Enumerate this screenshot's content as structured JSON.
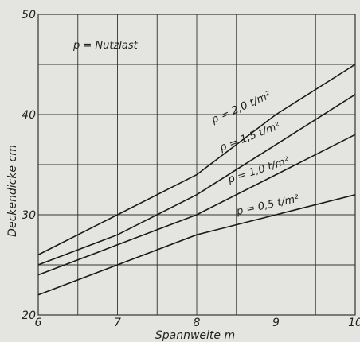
{
  "chart_data": {
    "type": "line",
    "title": "",
    "xlabel": "Spannweite m",
    "ylabel": "Deckendicke cm",
    "xlim": [
      6,
      10
    ],
    "ylim": [
      20,
      50
    ],
    "xticks": [
      6,
      7,
      8,
      9,
      10
    ],
    "yticks": [
      20,
      30,
      40,
      50
    ],
    "grid": true,
    "annotation": "p = Nutzlast",
    "series": [
      {
        "name": "p = 2,0 t/m²",
        "x": [
          6,
          7,
          8,
          9,
          10
        ],
        "y": [
          26,
          30,
          34,
          40,
          45
        ]
      },
      {
        "name": "p = 1,5 t/m²",
        "x": [
          6,
          7,
          8,
          9,
          10
        ],
        "y": [
          25,
          28,
          32,
          37,
          42
        ]
      },
      {
        "name": "p = 1,0 t/m²",
        "x": [
          6,
          7,
          8,
          9,
          10
        ],
        "y": [
          24,
          27,
          30,
          34,
          38
        ]
      },
      {
        "name": "p = 0,5 t/m²",
        "x": [
          6,
          7,
          8,
          9,
          10
        ],
        "y": [
          22,
          25,
          28,
          30,
          32
        ]
      }
    ]
  },
  "colors": {
    "line": "#1a1a1a",
    "grid": "#333333",
    "background": "#e4e4e1"
  }
}
